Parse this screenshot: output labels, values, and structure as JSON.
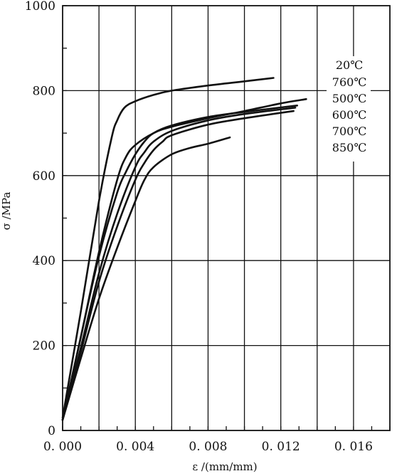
{
  "chart_data": {
    "type": "line",
    "title": "",
    "xlabel": "ε /(mm/mm)",
    "ylabel": "σ /MPa",
    "xlim": [
      0.0,
      0.018
    ],
    "ylim": [
      0,
      1000
    ],
    "x_ticks": [
      0.0,
      0.004,
      0.008,
      0.012,
      0.016
    ],
    "x_tick_labels": [
      "0. 000",
      "0. 004",
      "0. 008",
      "0. 012",
      "0. 016"
    ],
    "y_ticks": [
      0,
      200,
      400,
      600,
      800,
      1000
    ],
    "y_tick_labels": [
      "0",
      "200",
      "400",
      "600",
      "800",
      "1000"
    ],
    "grid": true,
    "legend_position": "right",
    "series": [
      {
        "name": "20℃",
        "x": [
          0.0,
          0.001,
          0.002,
          0.0027,
          0.003,
          0.0034,
          0.004,
          0.005,
          0.006,
          0.008,
          0.01,
          0.0116
        ],
        "y": [
          30,
          280,
          540,
          690,
          730,
          760,
          775,
          790,
          800,
          812,
          822,
          830
        ]
      },
      {
        "name": "760℃",
        "x": [
          0.0,
          0.001,
          0.002,
          0.003,
          0.0035,
          0.004,
          0.005,
          0.006,
          0.008,
          0.01,
          0.012,
          0.0134
        ],
        "y": [
          25,
          220,
          420,
          590,
          645,
          672,
          700,
          715,
          735,
          752,
          770,
          780
        ]
      },
      {
        "name": "500℃",
        "x": [
          0.0,
          0.001,
          0.002,
          0.003,
          0.0035,
          0.004,
          0.0045,
          0.005,
          0.006,
          0.008,
          0.01,
          0.0129
        ],
        "y": [
          25,
          220,
          410,
          560,
          610,
          650,
          680,
          700,
          718,
          738,
          750,
          765
        ]
      },
      {
        "name": "600℃",
        "x": [
          0.0,
          0.001,
          0.002,
          0.003,
          0.004,
          0.0045,
          0.005,
          0.006,
          0.008,
          0.01,
          0.0128
        ],
        "y": [
          25,
          195,
          370,
          510,
          620,
          655,
          680,
          705,
          730,
          745,
          760
        ]
      },
      {
        "name": "700℃",
        "x": [
          0.0,
          0.001,
          0.002,
          0.003,
          0.004,
          0.0045,
          0.005,
          0.0055,
          0.006,
          0.008,
          0.01,
          0.0127
        ],
        "y": [
          25,
          185,
          350,
          480,
          590,
          630,
          660,
          680,
          695,
          720,
          735,
          752
        ]
      },
      {
        "name": "850℃",
        "x": [
          0.0,
          0.001,
          0.002,
          0.003,
          0.004,
          0.0045,
          0.005,
          0.006,
          0.007,
          0.008,
          0.0092
        ],
        "y": [
          25,
          170,
          310,
          430,
          540,
          590,
          620,
          650,
          665,
          675,
          690
        ]
      }
    ]
  }
}
